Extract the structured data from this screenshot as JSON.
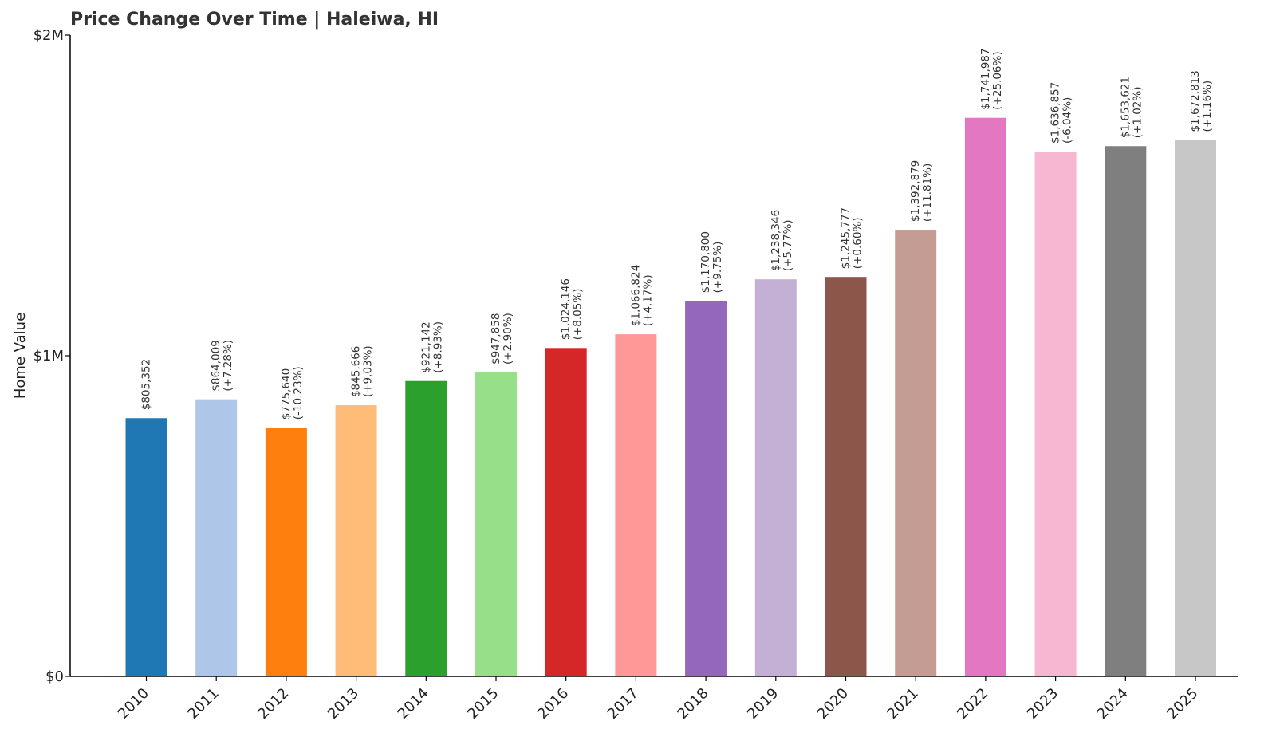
{
  "chart_data": {
    "type": "bar",
    "title": "Price Change Over Time | Haleiwa, HI",
    "xlabel": "",
    "ylabel": "Home Value",
    "ylim": [
      0,
      2000000
    ],
    "yticks": [
      {
        "value": 0,
        "label": "$0"
      },
      {
        "value": 1000000,
        "label": "$1M"
      },
      {
        "value": 2000000,
        "label": "$2M"
      }
    ],
    "grid": false,
    "categories": [
      "2010",
      "2011",
      "2012",
      "2013",
      "2014",
      "2015",
      "2016",
      "2017",
      "2018",
      "2019",
      "2020",
      "2021",
      "2022",
      "2023",
      "2024",
      "2025"
    ],
    "values": [
      805352,
      864009,
      775640,
      845666,
      921142,
      947858,
      1024146,
      1066824,
      1170800,
      1238346,
      1245777,
      1392879,
      1741987,
      1636857,
      1653621,
      1672813
    ],
    "value_labels": [
      "$805,352",
      "$864,009",
      "$775,640",
      "$845,666",
      "$921,142",
      "$947,858",
      "$1,024,146",
      "$1,066,824",
      "$1,170,800",
      "$1,238,346",
      "$1,245,777",
      "$1,392,879",
      "$1,741,987",
      "$1,636,857",
      "$1,653,621",
      "$1,672,813"
    ],
    "change_labels": [
      "",
      "(+7.28%)",
      "(-10.23%)",
      "(+9.03%)",
      "(+8.93%)",
      "(+2.90%)",
      "(+8.05%)",
      "(+4.17%)",
      "(+9.75%)",
      "(+5.77%)",
      "(+0.60%)",
      "(+11.81%)",
      "(+25.06%)",
      "(-6.04%)",
      "(+1.02%)",
      "(+1.16%)"
    ],
    "colors": [
      "#1f77b4",
      "#aec7e8",
      "#ff7f0e",
      "#ffbb78",
      "#2ca02c",
      "#98df8a",
      "#d62728",
      "#ff9896",
      "#9467bd",
      "#c5b0d5",
      "#8c564b",
      "#c49c94",
      "#e377c2",
      "#f7b6d2",
      "#7f7f7f",
      "#c7c7c7"
    ]
  }
}
